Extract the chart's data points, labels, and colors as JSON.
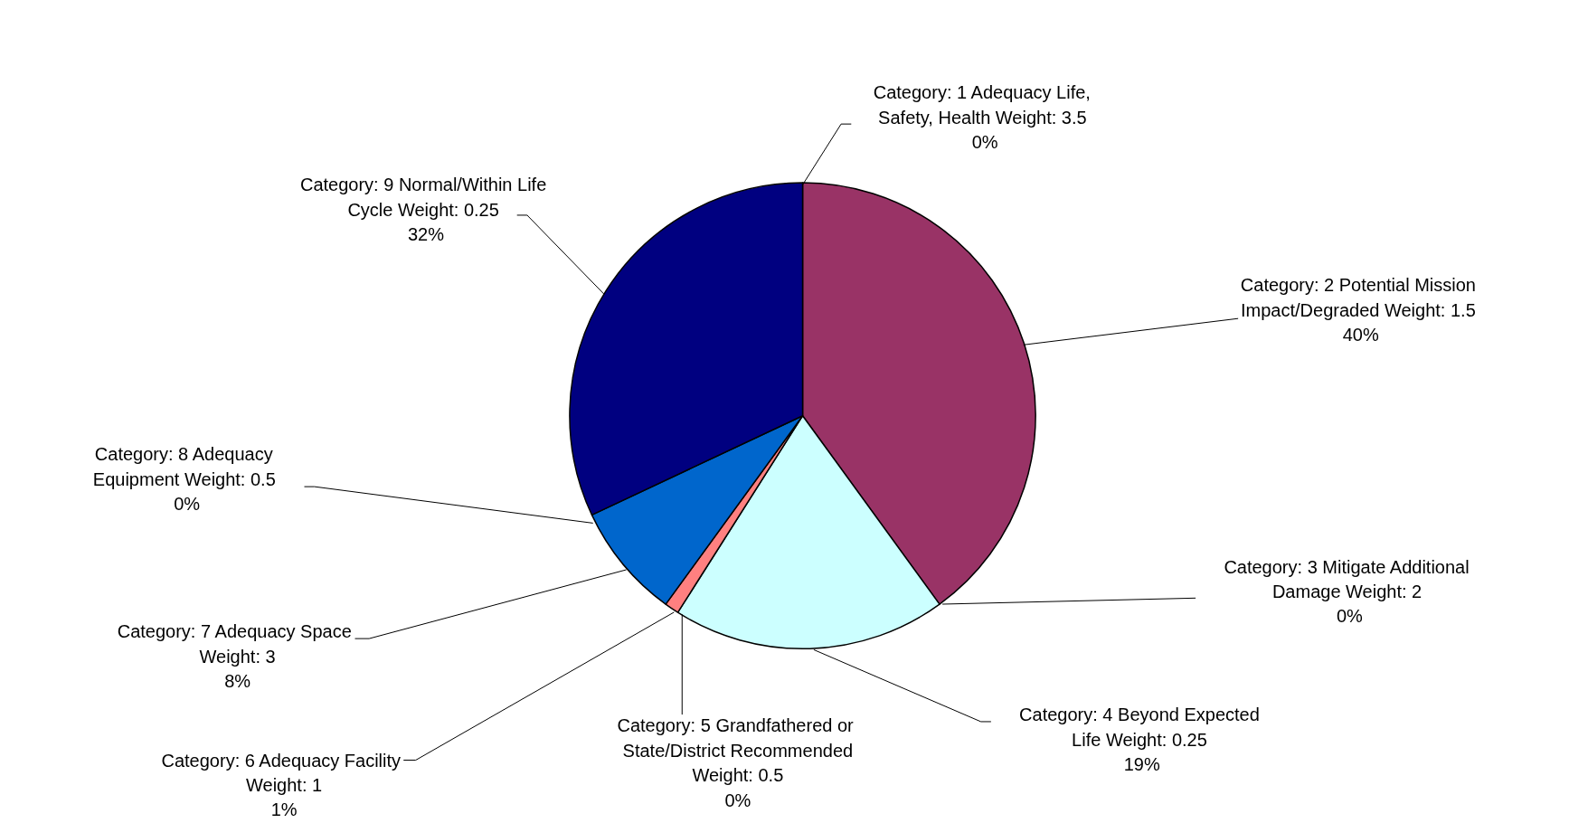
{
  "chart_data": {
    "type": "pie",
    "categories": [
      "Category: 1  Adequacy Life, Safety, Health  Weight: 3.5",
      "Category: 2  Potential Mission Impact/Degraded  Weight: 1.5",
      "Category: 3  Mitigate Additional Damage  Weight: 2",
      "Category: 4  Beyond Expected Life  Weight: 0.25",
      "Category: 5  Grandfathered or State/District Recommended Weight: 0.5",
      "Category: 6  Adequacy Facility Weight: 1",
      "Category: 7  Adequacy Space Weight: 3",
      "Category: 8  Adequacy Equipment  Weight: 0.5",
      "Category: 9  Normal/Within Life Cycle  Weight: 0.25"
    ],
    "values": [
      0,
      40,
      0,
      19,
      0,
      1,
      8,
      0,
      32
    ],
    "colors": [
      "#9999ff",
      "#993366",
      "#ffffcc",
      "#ccffff",
      "#660066",
      "#ff8080",
      "#0066cc",
      "#ccccff",
      "#000080"
    ],
    "value_labels": [
      "0%",
      "40%",
      "0%",
      "19%",
      "0%",
      "1%",
      "8%",
      "0%",
      "32%"
    ]
  }
}
